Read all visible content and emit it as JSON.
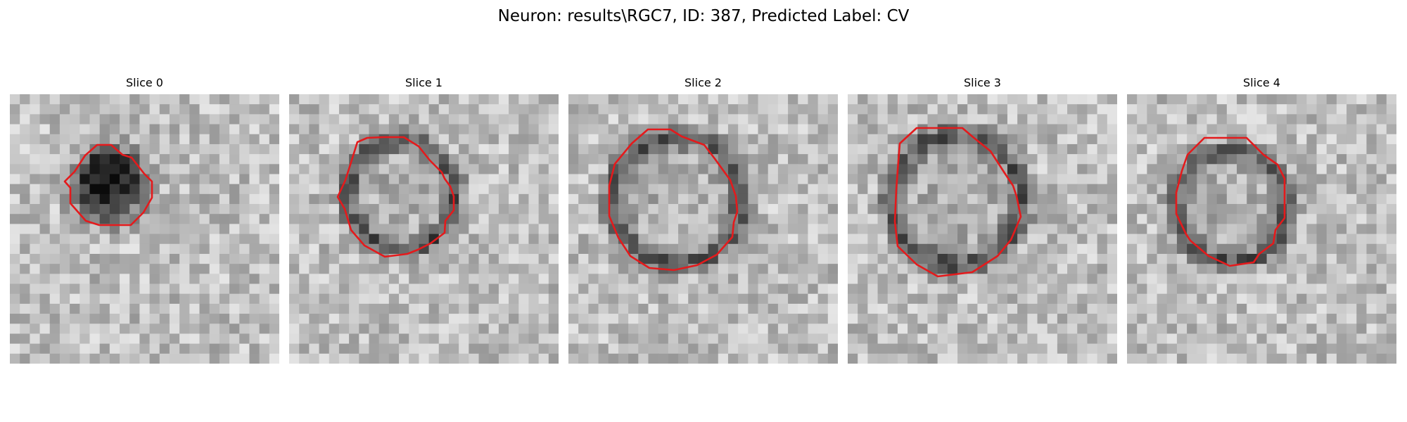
{
  "figure": {
    "title": "Neuron: results\\RGC7, ID: 387, Predicted Label: CV"
  },
  "panels": [
    {
      "title": "Slice 0"
    },
    {
      "title": "Slice 1"
    },
    {
      "title": "Slice 2"
    },
    {
      "title": "Slice 3"
    },
    {
      "title": "Slice 4"
    }
  ],
  "style": {
    "contour_color": "#e41a1c",
    "colormap": "gray"
  }
}
